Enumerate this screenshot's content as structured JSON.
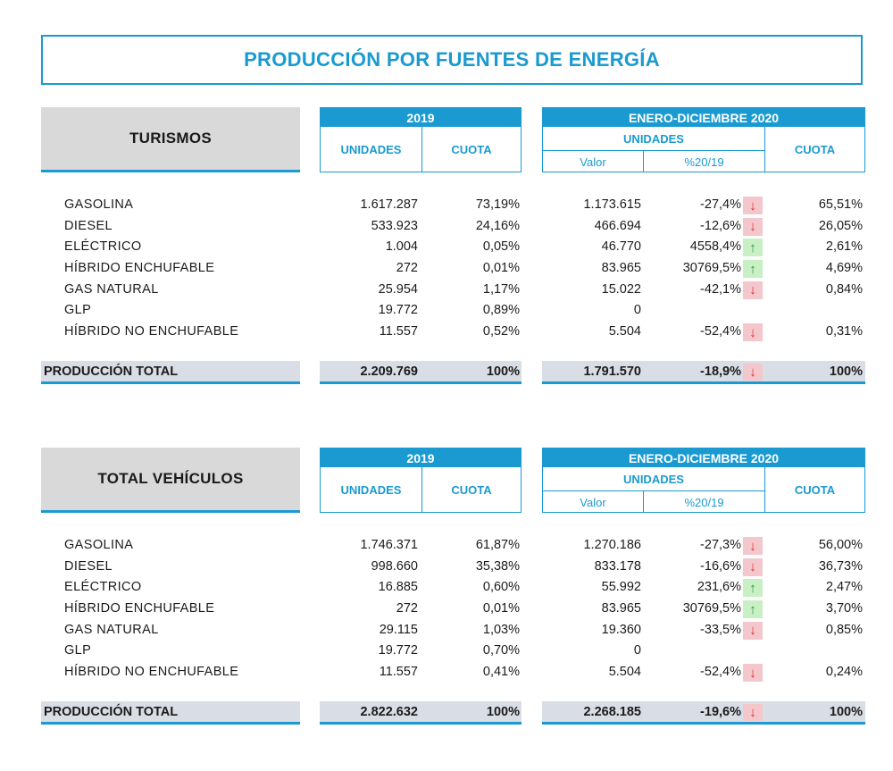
{
  "title": "PRODUCCIÓN POR FUENTES DE ENERGÍA",
  "headers": {
    "year_2019": "2019",
    "period_2020": "ENERO-DICIEMBRE 2020",
    "unidades": "UNIDADES",
    "cuota": "CUOTA",
    "valor": "Valor",
    "pct": "%20/19"
  },
  "sections": [
    {
      "label": "TURISMOS",
      "rows": [
        {
          "name": "GASOLINA",
          "u2019": "1.617.287",
          "c2019": "73,19%",
          "v2020": "1.173.615",
          "p2020": "-27,4%",
          "trend": "down",
          "q2020": "65,51%"
        },
        {
          "name": "DIESEL",
          "u2019": "533.923",
          "c2019": "24,16%",
          "v2020": "466.694",
          "p2020": "-12,6%",
          "trend": "down",
          "q2020": "26,05%"
        },
        {
          "name": "ELÉCTRICO",
          "u2019": "1.004",
          "c2019": "0,05%",
          "v2020": "46.770",
          "p2020": "4558,4%",
          "trend": "up",
          "q2020": "2,61%"
        },
        {
          "name": "HÍBRIDO ENCHUFABLE",
          "u2019": "272",
          "c2019": "0,01%",
          "v2020": "83.965",
          "p2020": "30769,5%",
          "trend": "up",
          "q2020": "4,69%"
        },
        {
          "name": "GAS NATURAL",
          "u2019": "25.954",
          "c2019": "1,17%",
          "v2020": "15.022",
          "p2020": "-42,1%",
          "trend": "down",
          "q2020": "0,84%"
        },
        {
          "name": "GLP",
          "u2019": "19.772",
          "c2019": "0,89%",
          "v2020": "0",
          "p2020": "",
          "trend": "",
          "q2020": ""
        },
        {
          "name": "HÍBRIDO NO ENCHUFABLE",
          "u2019": "11.557",
          "c2019": "0,52%",
          "v2020": "5.504",
          "p2020": "-52,4%",
          "trend": "down",
          "q2020": "0,31%"
        }
      ],
      "total": {
        "name": "PRODUCCIÓN TOTAL",
        "u2019": "2.209.769",
        "c2019": "100%",
        "v2020": "1.791.570",
        "p2020": "-18,9%",
        "trend": "down",
        "q2020": "100%"
      }
    },
    {
      "label": "TOTAL VEHÍCULOS",
      "rows": [
        {
          "name": "GASOLINA",
          "u2019": "1.746.371",
          "c2019": "61,87%",
          "v2020": "1.270.186",
          "p2020": "-27,3%",
          "trend": "down",
          "q2020": "56,00%"
        },
        {
          "name": "DIESEL",
          "u2019": "998.660",
          "c2019": "35,38%",
          "v2020": "833.178",
          "p2020": "-16,6%",
          "trend": "down",
          "q2020": "36,73%"
        },
        {
          "name": "ELÉCTRICO",
          "u2019": "16.885",
          "c2019": "0,60%",
          "v2020": "55.992",
          "p2020": "231,6%",
          "trend": "up",
          "q2020": "2,47%"
        },
        {
          "name": "HÍBRIDO ENCHUFABLE",
          "u2019": "272",
          "c2019": "0,01%",
          "v2020": "83.965",
          "p2020": "30769,5%",
          "trend": "up",
          "q2020": "3,70%"
        },
        {
          "name": "GAS NATURAL",
          "u2019": "29.115",
          "c2019": "1,03%",
          "v2020": "19.360",
          "p2020": "-33,5%",
          "trend": "down",
          "q2020": "0,85%"
        },
        {
          "name": "GLP",
          "u2019": "19.772",
          "c2019": "0,70%",
          "v2020": "0",
          "p2020": "",
          "trend": "",
          "q2020": ""
        },
        {
          "name": "HÍBRIDO NO ENCHUFABLE",
          "u2019": "11.557",
          "c2019": "0,41%",
          "v2020": "5.504",
          "p2020": "-52,4%",
          "trend": "down",
          "q2020": "0,24%"
        }
      ],
      "total": {
        "name": "PRODUCCIÓN TOTAL",
        "u2019": "2.822.632",
        "c2019": "100%",
        "v2020": "2.268.185",
        "p2020": "-19,6%",
        "trend": "down",
        "q2020": "100%"
      }
    }
  ],
  "colors": {
    "accent": "#1a9ad0",
    "down_bg": "#f4c7cd",
    "down_fg": "#e02a2a",
    "up_bg": "#c9efc5",
    "up_fg": "#2a9a3a",
    "label_bg": "#d9d9d9",
    "total_bg": "#d9dde6"
  }
}
